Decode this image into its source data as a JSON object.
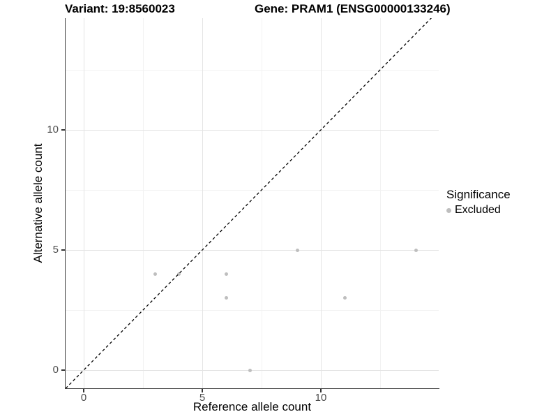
{
  "titles": {
    "left": "Variant: 19:8560023",
    "right": "Gene: PRAM1 (ENSG00000133246)"
  },
  "chart_data": {
    "type": "scatter",
    "xlabel": "Reference allele count",
    "ylabel": "Alternative allele count",
    "x_ticks": [
      0,
      5,
      10
    ],
    "y_ticks": [
      0,
      5,
      10
    ],
    "x_minor_gridlines": [
      2.5,
      7.5,
      12.5
    ],
    "y_minor_gridlines": [
      2.5,
      7.5,
      12.5
    ],
    "xlim": [
      -0.76,
      14.97
    ],
    "ylim": [
      -0.76,
      14.65
    ],
    "grid": "on",
    "legend_position": "right",
    "series": [
      {
        "name": "Excluded",
        "color": "#bebebe",
        "points": [
          [
            3,
            4
          ],
          [
            4,
            4
          ],
          [
            6,
            4
          ],
          [
            6,
            3
          ],
          [
            7,
            0
          ],
          [
            9,
            5
          ],
          [
            11,
            3
          ],
          [
            14,
            5
          ]
        ]
      }
    ],
    "reference_line": {
      "type": "identity",
      "style": "dashed",
      "color": "#000000"
    }
  },
  "legend": {
    "title": "Significance",
    "items": [
      {
        "label": "Excluded",
        "color": "#bebebe",
        "marker": "circle-icon"
      }
    ]
  },
  "colors": {
    "grid_major": "#e4e4e4",
    "grid_minor": "#f2f2f2",
    "axis_line": "#3f3f3f",
    "tick_label": "#4d4d4d",
    "point": "#bebebe"
  }
}
